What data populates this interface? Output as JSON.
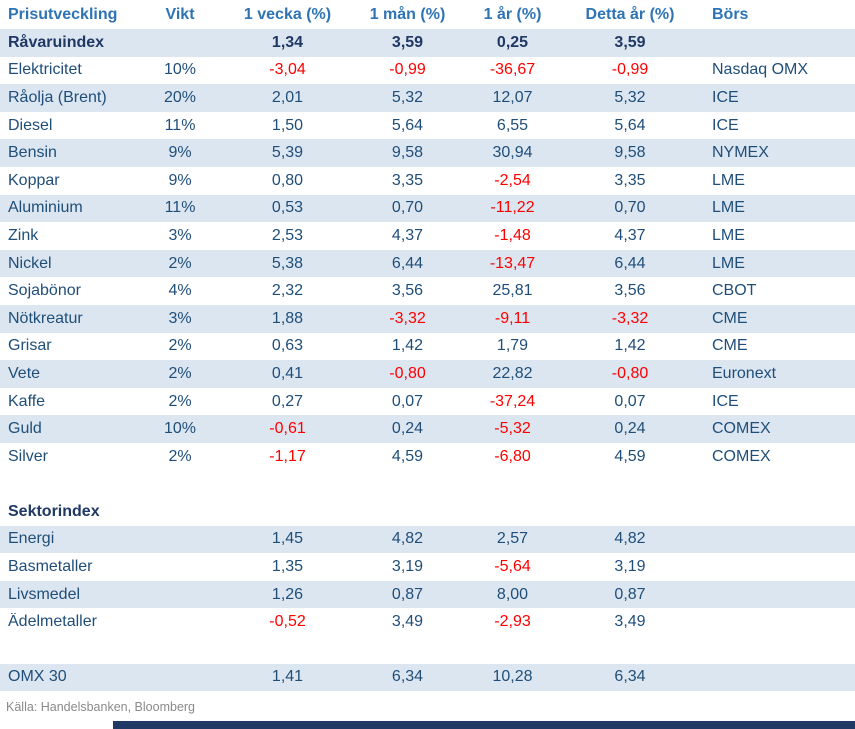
{
  "chart_data": {
    "type": "table",
    "columns": [
      "Prisutveckling",
      "Vikt",
      "1 vecka (%)",
      "1 mån (%)",
      "1 år (%)",
      "Detta år (%)",
      "Börs"
    ],
    "rows": [
      {
        "name": "Råvaruindex",
        "vikt": "",
        "w1": "1,34",
        "m1": "3,59",
        "y1": "0,25",
        "ytd": "3,59",
        "exchange": "",
        "shaded": true,
        "bold": true
      },
      {
        "name": "Elektricitet",
        "vikt": "10%",
        "w1": "-3,04",
        "m1": "-0,99",
        "y1": "-36,67",
        "ytd": "-0,99",
        "exchange": "Nasdaq OMX",
        "shaded": false,
        "bold": false
      },
      {
        "name": "Råolja (Brent)",
        "vikt": "20%",
        "w1": "2,01",
        "m1": "5,32",
        "y1": "12,07",
        "ytd": "5,32",
        "exchange": "ICE",
        "shaded": true,
        "bold": false
      },
      {
        "name": "Diesel",
        "vikt": "11%",
        "w1": "1,50",
        "m1": "5,64",
        "y1": "6,55",
        "ytd": "5,64",
        "exchange": "ICE",
        "shaded": false,
        "bold": false
      },
      {
        "name": "Bensin",
        "vikt": "9%",
        "w1": "5,39",
        "m1": "9,58",
        "y1": "30,94",
        "ytd": "9,58",
        "exchange": "NYMEX",
        "shaded": true,
        "bold": false
      },
      {
        "name": "Koppar",
        "vikt": "9%",
        "w1": "0,80",
        "m1": "3,35",
        "y1": "-2,54",
        "ytd": "3,35",
        "exchange": "LME",
        "shaded": false,
        "bold": false
      },
      {
        "name": "Aluminium",
        "vikt": "11%",
        "w1": "0,53",
        "m1": "0,70",
        "y1": "-11,22",
        "ytd": "0,70",
        "exchange": "LME",
        "shaded": true,
        "bold": false
      },
      {
        "name": "Zink",
        "vikt": "3%",
        "w1": "2,53",
        "m1": "4,37",
        "y1": "-1,48",
        "ytd": "4,37",
        "exchange": "LME",
        "shaded": false,
        "bold": false
      },
      {
        "name": "Nickel",
        "vikt": "2%",
        "w1": "5,38",
        "m1": "6,44",
        "y1": "-13,47",
        "ytd": "6,44",
        "exchange": "LME",
        "shaded": true,
        "bold": false
      },
      {
        "name": "Sojabönor",
        "vikt": "4%",
        "w1": "2,32",
        "m1": "3,56",
        "y1": "25,81",
        "ytd": "3,56",
        "exchange": "CBOT",
        "shaded": false,
        "bold": false
      },
      {
        "name": "Nötkreatur",
        "vikt": "3%",
        "w1": "1,88",
        "m1": "-3,32",
        "y1": "-9,11",
        "ytd": "-3,32",
        "exchange": "CME",
        "shaded": true,
        "bold": false
      },
      {
        "name": "Grisar",
        "vikt": "2%",
        "w1": "0,63",
        "m1": "1,42",
        "y1": "1,79",
        "ytd": "1,42",
        "exchange": "CME",
        "shaded": false,
        "bold": false
      },
      {
        "name": "Vete",
        "vikt": "2%",
        "w1": "0,41",
        "m1": "-0,80",
        "y1": "22,82",
        "ytd": "-0,80",
        "exchange": "Euronext",
        "shaded": true,
        "bold": false
      },
      {
        "name": "Kaffe",
        "vikt": "2%",
        "w1": "0,27",
        "m1": "0,07",
        "y1": "-37,24",
        "ytd": "0,07",
        "exchange": "ICE",
        "shaded": false,
        "bold": false
      },
      {
        "name": "Guld",
        "vikt": "10%",
        "w1": "-0,61",
        "m1": "0,24",
        "y1": "-5,32",
        "ytd": "0,24",
        "exchange": "COMEX",
        "shaded": true,
        "bold": false
      },
      {
        "name": "Silver",
        "vikt": "2%",
        "w1": "-1,17",
        "m1": "4,59",
        "y1": "-6,80",
        "ytd": "4,59",
        "exchange": "COMEX",
        "shaded": false,
        "bold": false
      },
      {
        "name": "",
        "vikt": "",
        "w1": "",
        "m1": "",
        "y1": "",
        "ytd": "",
        "exchange": "",
        "shaded": false,
        "bold": false,
        "blank": true
      },
      {
        "name": "Sektorindex",
        "vikt": "",
        "w1": "",
        "m1": "",
        "y1": "",
        "ytd": "",
        "exchange": "",
        "shaded": false,
        "bold": true
      },
      {
        "name": "Energi",
        "vikt": "",
        "w1": "1,45",
        "m1": "4,82",
        "y1": "2,57",
        "ytd": "4,82",
        "exchange": "",
        "shaded": true,
        "bold": false
      },
      {
        "name": "Basmetaller",
        "vikt": "",
        "w1": "1,35",
        "m1": "3,19",
        "y1": "-5,64",
        "ytd": "3,19",
        "exchange": "",
        "shaded": false,
        "bold": false
      },
      {
        "name": "Livsmedel",
        "vikt": "",
        "w1": "1,26",
        "m1": "0,87",
        "y1": "8,00",
        "ytd": "0,87",
        "exchange": "",
        "shaded": true,
        "bold": false
      },
      {
        "name": "Ädelmetaller",
        "vikt": "",
        "w1": "-0,52",
        "m1": "3,49",
        "y1": "-2,93",
        "ytd": "3,49",
        "exchange": "",
        "shaded": false,
        "bold": false
      },
      {
        "name": "",
        "vikt": "",
        "w1": "",
        "m1": "",
        "y1": "",
        "ytd": "",
        "exchange": "",
        "shaded": false,
        "bold": false,
        "blank": true
      },
      {
        "name": "OMX 30",
        "vikt": "",
        "w1": "1,41",
        "m1": "6,34",
        "y1": "10,28",
        "ytd": "6,34",
        "exchange": "",
        "shaded": true,
        "bold": false
      }
    ],
    "colors": {
      "header_text": "#2e74b5",
      "body_text": "#1f4e79",
      "bold_text": "#1f3864",
      "negative_text": "#ff0000",
      "shaded_row_bg": "#dce6f1",
      "row_bg": "#ffffff"
    }
  },
  "source": {
    "label": "Källa: Handelsbanken, Bloomberg"
  },
  "footer": {
    "accent_bar_color": "#1f3864"
  }
}
